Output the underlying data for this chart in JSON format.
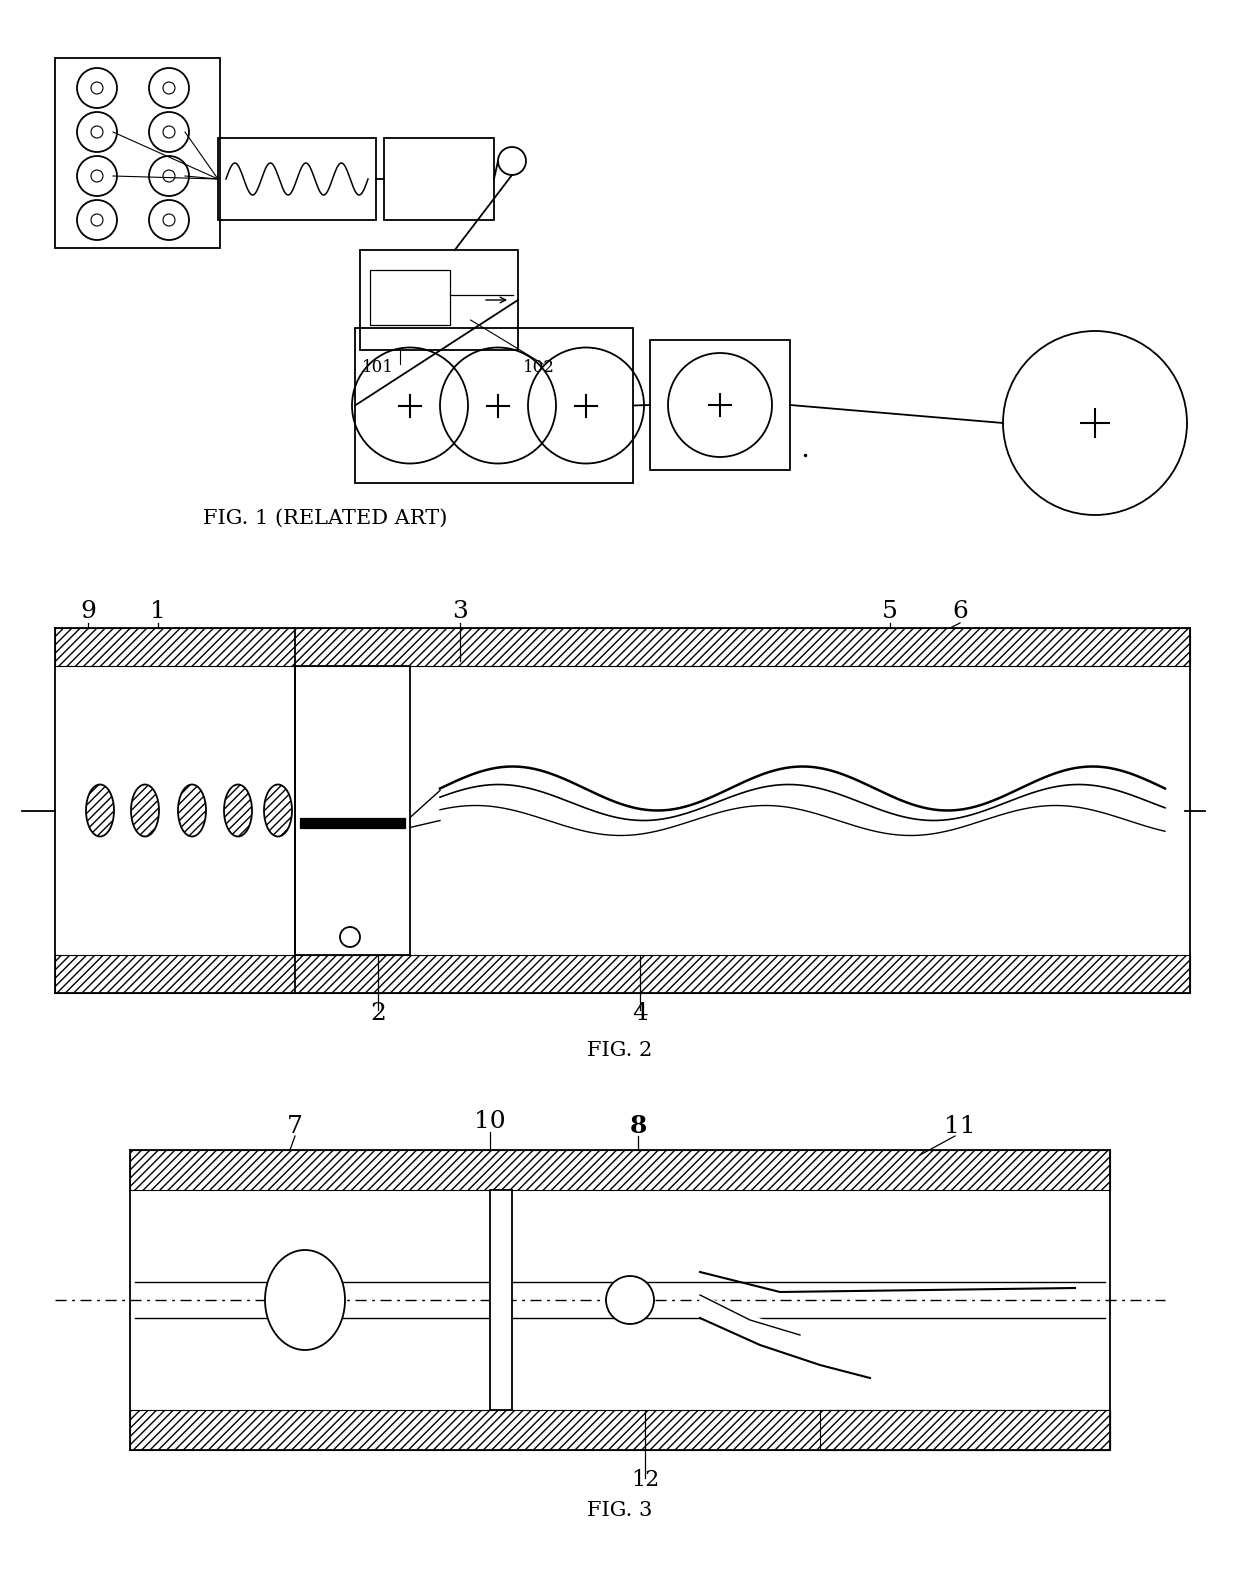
{
  "fig1_caption": "FIG. 1 (RELATED ART)",
  "fig2_caption": "FIG. 2",
  "fig3_caption": "FIG. 3",
  "bg_color": "#ffffff",
  "line_color": "#000000",
  "label_fontsize": 16,
  "caption_fontsize": 14
}
